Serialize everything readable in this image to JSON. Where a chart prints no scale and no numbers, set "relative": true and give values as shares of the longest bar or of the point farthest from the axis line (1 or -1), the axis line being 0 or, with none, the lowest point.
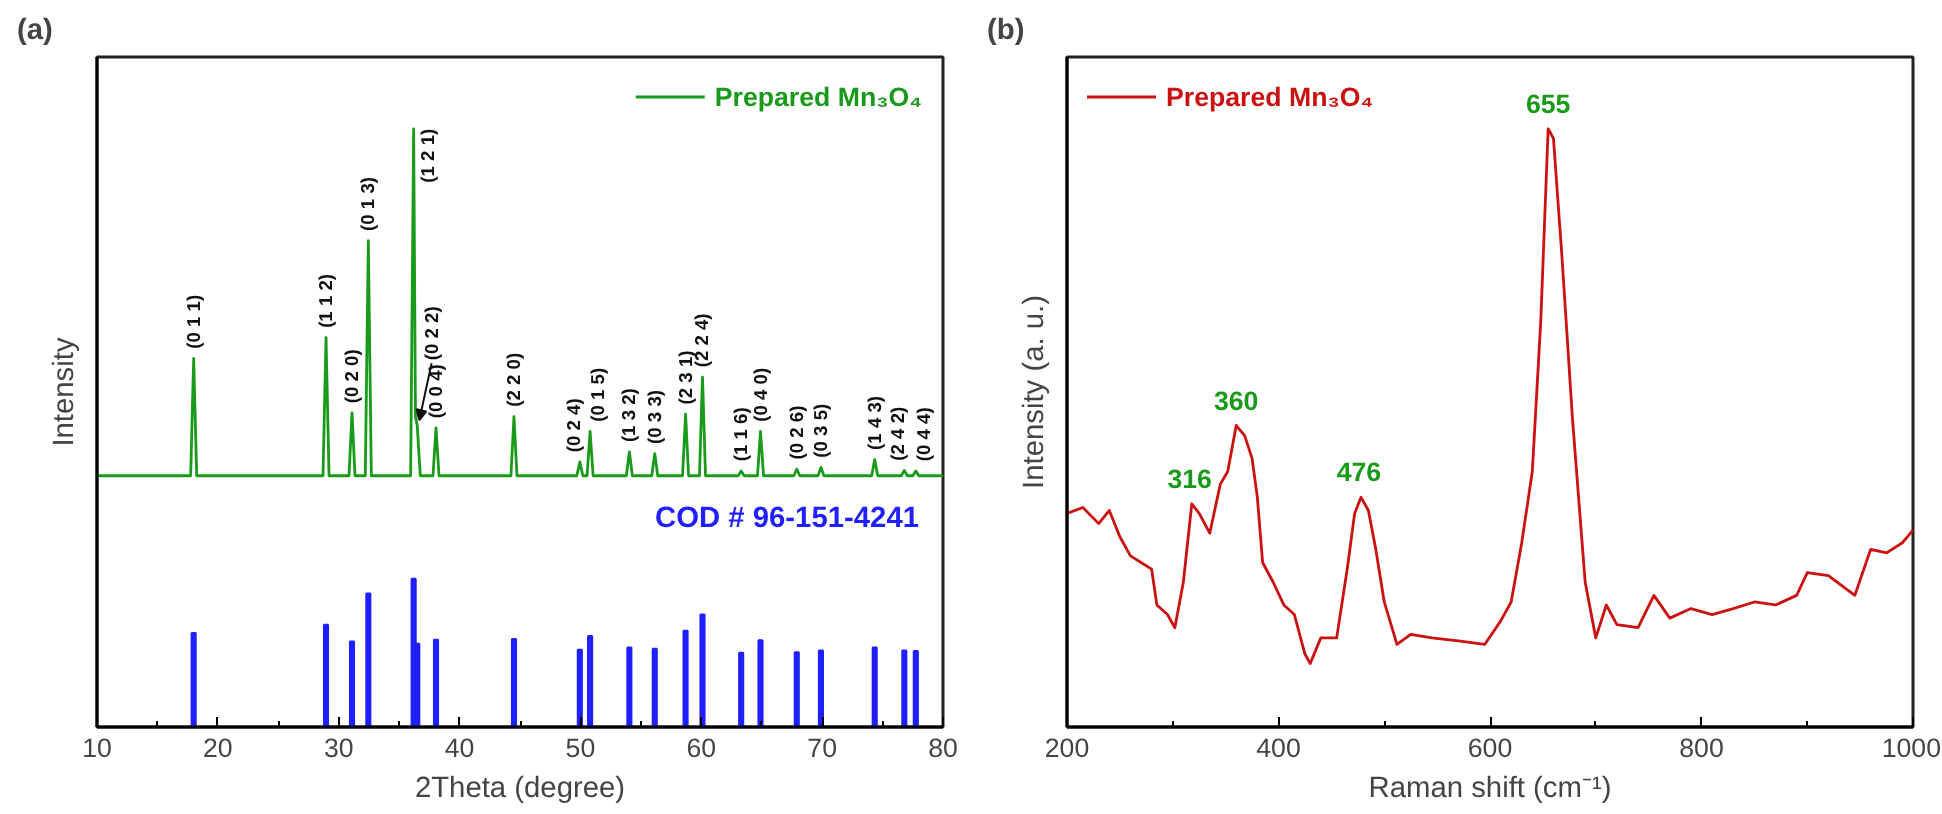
{
  "chart_data": [
    {
      "type": "line",
      "title": "(a)",
      "xlabel": "2Theta (degree)",
      "ylabel": "Intensity",
      "relative": true,
      "legend": "top right",
      "xlim": [
        10,
        80
      ],
      "xticks": [
        10,
        {
          "value": 15,
          "label": null
        },
        20,
        {
          "value": 25,
          "label": null
        },
        30,
        {
          "value": 35,
          "label": null
        },
        40,
        {
          "value": 45,
          "label": null
        },
        50,
        {
          "value": 55,
          "label": null
        },
        60,
        {
          "value": 65,
          "label": null
        },
        70,
        {
          "value": 75,
          "label": null
        },
        80
      ],
      "series": [
        {
          "name": "Prepared Mn₃O₄",
          "type": "line",
          "color": "#1a9a1a",
          "x": [
            10,
            17.75,
            18.0,
            18.25,
            28.7,
            28.95,
            29.2,
            30.85,
            31.1,
            31.35,
            32.2,
            32.45,
            32.7,
            35.95,
            36.2,
            36.35,
            36.5,
            36.75,
            37.8,
            38.05,
            38.3,
            44.25,
            44.5,
            44.75,
            49.7,
            49.95,
            50.2,
            50.55,
            50.8,
            51.05,
            53.8,
            54.05,
            54.3,
            55.9,
            56.15,
            56.4,
            58.45,
            58.7,
            58.95,
            59.85,
            60.1,
            60.35,
            63.05,
            63.3,
            63.55,
            64.65,
            64.9,
            65.15,
            67.65,
            67.9,
            68.15,
            69.65,
            69.9,
            70.15,
            74.1,
            74.35,
            74.6,
            76.55,
            76.8,
            77.05,
            77.5,
            77.75,
            78.0,
            80
          ],
          "values": [
            0.42,
            0.42,
            0.616,
            0.42,
            0.42,
            0.651,
            0.42,
            0.42,
            0.525,
            0.42,
            0.42,
            0.813,
            0.42,
            0.42,
            1.0,
            0.52,
            0.503,
            0.42,
            0.42,
            0.5,
            0.42,
            0.42,
            0.519,
            0.42,
            0.42,
            0.443,
            0.42,
            0.42,
            0.494,
            0.42,
            0.42,
            0.46,
            0.42,
            0.42,
            0.457,
            0.42,
            0.42,
            0.523,
            0.42,
            0.42,
            0.585,
            0.42,
            0.42,
            0.428,
            0.42,
            0.42,
            0.494,
            0.42,
            0.42,
            0.431,
            0.42,
            0.42,
            0.434,
            0.42,
            0.42,
            0.447,
            0.42,
            0.42,
            0.429,
            0.42,
            0.42,
            0.428,
            0.42,
            0.42
          ]
        },
        {
          "name": "COD # 96-151-4241",
          "type": "bar",
          "color": "#1f1fff",
          "x": [
            18.0,
            28.95,
            31.1,
            32.45,
            36.2,
            36.5,
            38.05,
            44.5,
            49.95,
            50.8,
            54.05,
            56.15,
            58.7,
            60.1,
            63.3,
            64.9,
            67.9,
            69.9,
            74.35,
            76.8,
            77.75
          ],
          "values": [
            0.157,
            0.171,
            0.143,
            0.223,
            0.248,
            0.139,
            0.146,
            0.147,
            0.129,
            0.152,
            0.133,
            0.131,
            0.161,
            0.188,
            0.124,
            0.145,
            0.125,
            0.128,
            0.133,
            0.128,
            0.127
          ]
        }
      ],
      "annotations": [
        {
          "text": "(0 1 1)",
          "x": 18.0,
          "y": 0.616
        },
        {
          "text": "(1 1 2)",
          "x": 28.95,
          "y": 0.651
        },
        {
          "text": "(0 2 0)",
          "x": 31.1,
          "y": 0.525
        },
        {
          "text": "(0 1 3)",
          "x": 32.45,
          "y": 0.813
        },
        {
          "text": "(1 2 1)",
          "x": 36.2,
          "y": 1.0
        },
        {
          "text": "(0 2 2)",
          "x": 36.5,
          "y": 0.503
        },
        {
          "text": "(0 0 4)",
          "x": 38.05,
          "y": 0.5
        },
        {
          "text": "(2 2 0)",
          "x": 44.5,
          "y": 0.519
        },
        {
          "text": "(0 2 4)",
          "x": 49.95,
          "y": 0.443
        },
        {
          "text": "(0 1 5)",
          "x": 50.8,
          "y": 0.494
        },
        {
          "text": "(1 3 2)",
          "x": 54.05,
          "y": 0.46
        },
        {
          "text": "(0 3 3)",
          "x": 56.15,
          "y": 0.457
        },
        {
          "text": "(2 3 1)",
          "x": 58.7,
          "y": 0.523
        },
        {
          "text": "(2 2 4)",
          "x": 60.1,
          "y": 0.585
        },
        {
          "text": "(1 1 6)",
          "x": 63.3,
          "y": 0.428
        },
        {
          "text": "(0 4 0)",
          "x": 64.9,
          "y": 0.494
        },
        {
          "text": "(0 2 6)",
          "x": 67.9,
          "y": 0.431
        },
        {
          "text": "(0 3 5)",
          "x": 69.9,
          "y": 0.434
        },
        {
          "text": "(1 4 3)",
          "x": 74.35,
          "y": 0.447
        },
        {
          "text": "(2 4 2)",
          "x": 76.8,
          "y": 0.429
        },
        {
          "text": "(0 4 4)",
          "x": 77.75,
          "y": 0.428
        }
      ]
    },
    {
      "type": "line",
      "title": "(b)",
      "xlabel": "Raman shift (cm⁻¹)",
      "ylabel": "Intensity (a. u.)",
      "relative": true,
      "legend": "top left",
      "xlim": [
        200,
        1000
      ],
      "xticks": [
        200,
        {
          "value": 300,
          "label": null
        },
        400,
        {
          "value": 500,
          "label": null
        },
        600,
        {
          "value": 700,
          "label": null
        },
        800,
        {
          "value": 900,
          "label": null
        },
        1000
      ],
      "series": [
        {
          "name": "Prepared Mn₃O₄",
          "color": "#cc1111",
          "x": [
            200,
            215,
            230,
            240,
            250,
            260,
            270,
            280,
            285,
            295,
            302,
            310,
            318,
            325,
            335,
            345,
            352,
            360,
            368,
            375,
            380,
            385,
            395,
            405,
            415,
            425,
            430,
            440,
            455,
            465,
            472,
            478,
            485,
            492,
            500,
            512,
            525,
            545,
            570,
            595,
            610,
            620,
            630,
            640,
            648,
            655,
            660,
            668,
            678,
            690,
            700,
            710,
            720,
            740,
            755,
            770,
            790,
            810,
            830,
            850,
            870,
            890,
            900,
            920,
            945,
            960,
            975,
            990,
            1000
          ],
          "values": [
            0.357,
            0.367,
            0.34,
            0.362,
            0.318,
            0.286,
            0.275,
            0.264,
            0.204,
            0.188,
            0.166,
            0.242,
            0.373,
            0.357,
            0.324,
            0.406,
            0.427,
            0.504,
            0.487,
            0.449,
            0.384,
            0.275,
            0.242,
            0.204,
            0.188,
            0.122,
            0.106,
            0.149,
            0.149,
            0.264,
            0.357,
            0.384,
            0.362,
            0.297,
            0.209,
            0.138,
            0.155,
            0.149,
            0.144,
            0.138,
            0.177,
            0.209,
            0.308,
            0.427,
            0.678,
            1.0,
            0.984,
            0.787,
            0.515,
            0.242,
            0.149,
            0.204,
            0.171,
            0.166,
            0.22,
            0.182,
            0.198,
            0.188,
            0.198,
            0.209,
            0.204,
            0.22,
            0.258,
            0.253,
            0.22,
            0.297,
            0.291,
            0.308,
            0.329
          ]
        }
      ],
      "annotations": [
        {
          "text": "316",
          "x": 316,
          "y": 0.373
        },
        {
          "text": "360",
          "x": 360,
          "y": 0.504
        },
        {
          "text": "476",
          "x": 476,
          "y": 0.384
        },
        {
          "text": "655",
          "x": 655,
          "y": 1.0
        }
      ]
    }
  ]
}
